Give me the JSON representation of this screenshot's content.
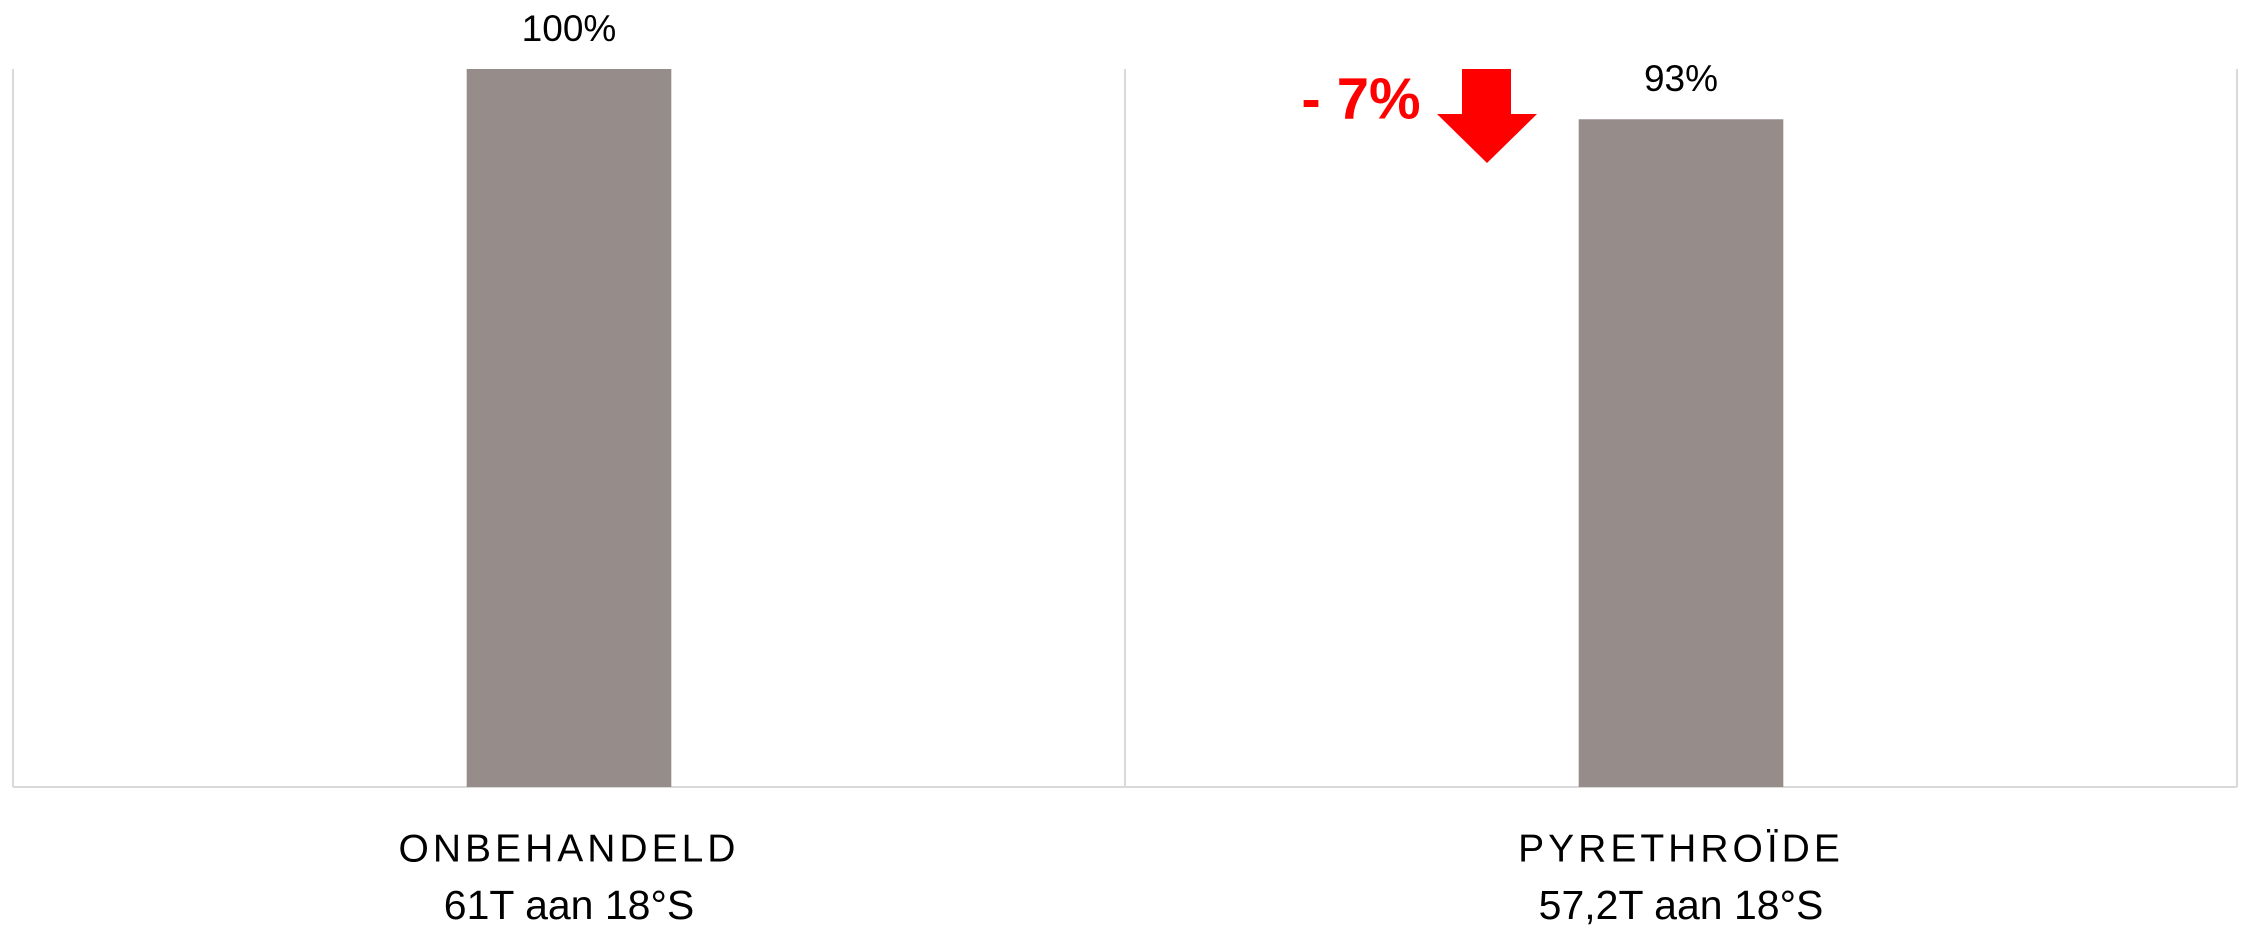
{
  "chart_data": {
    "type": "bar",
    "categories": [
      "ONBEHANDELD",
      "PYRETHROÏDE"
    ],
    "category_details": [
      "61T aan 18°S",
      "57,2T aan 18°S"
    ],
    "values": [
      100,
      93
    ],
    "value_labels": [
      "100%",
      "93%"
    ],
    "color": "#968d8a",
    "ylim": [
      0,
      100
    ],
    "annotation": "- 7%"
  }
}
